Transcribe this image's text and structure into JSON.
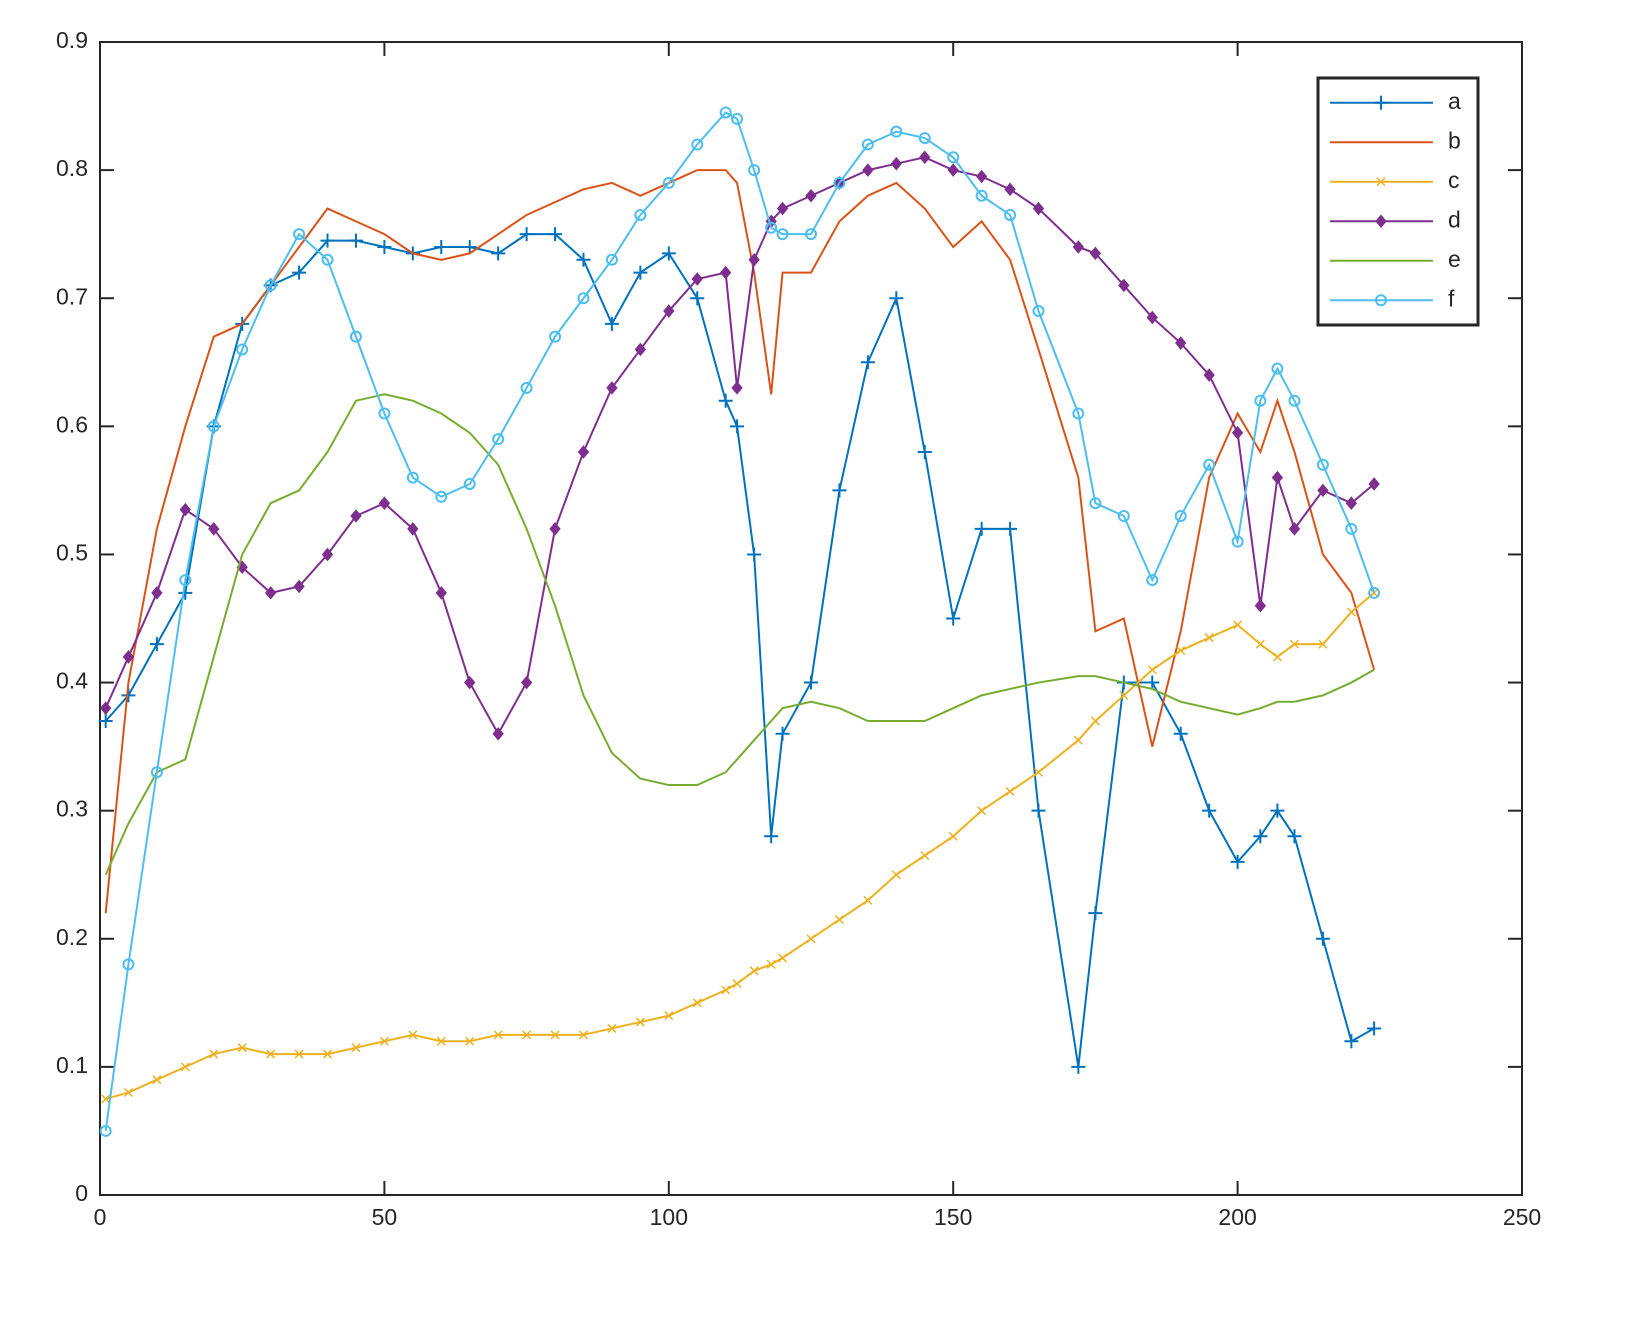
{
  "chart_data": {
    "type": "line",
    "x": [
      1,
      5,
      10,
      15,
      20,
      25,
      30,
      35,
      40,
      45,
      50,
      55,
      60,
      65,
      70,
      75,
      80,
      85,
      90,
      95,
      100,
      105,
      110,
      112,
      115,
      118,
      120,
      125,
      130,
      135,
      140,
      145,
      150,
      155,
      160,
      165,
      172,
      175,
      180,
      185,
      190,
      195,
      200,
      204,
      207,
      210,
      215,
      220,
      224
    ],
    "series": [
      {
        "name": "a",
        "color": "#0072BD",
        "marker": "+",
        "values": [
          0.37,
          0.39,
          0.43,
          0.47,
          0.6,
          0.68,
          0.71,
          0.72,
          0.745,
          0.745,
          0.74,
          0.735,
          0.74,
          0.74,
          0.735,
          0.75,
          0.75,
          0.73,
          0.68,
          0.72,
          0.735,
          0.7,
          0.62,
          0.6,
          0.5,
          0.28,
          0.36,
          0.4,
          0.55,
          0.65,
          0.7,
          0.58,
          0.45,
          0.52,
          0.52,
          0.3,
          0.1,
          0.22,
          0.4,
          0.4,
          0.36,
          0.3,
          0.26,
          0.28,
          0.3,
          0.28,
          0.2,
          0.12,
          0.13
        ]
      },
      {
        "name": "b",
        "color": "#D95319",
        "marker": "none",
        "values": [
          0.22,
          0.4,
          0.52,
          0.6,
          0.67,
          0.68,
          0.71,
          0.74,
          0.77,
          0.76,
          0.75,
          0.735,
          0.73,
          0.735,
          0.75,
          0.765,
          0.775,
          0.785,
          0.79,
          0.78,
          0.79,
          0.8,
          0.8,
          0.79,
          0.72,
          0.625,
          0.72,
          0.72,
          0.76,
          0.78,
          0.79,
          0.77,
          0.74,
          0.76,
          0.73,
          0.66,
          0.56,
          0.44,
          0.45,
          0.35,
          0.44,
          0.56,
          0.61,
          0.58,
          0.62,
          0.58,
          0.5,
          0.47,
          0.41
        ]
      },
      {
        "name": "c",
        "color": "#EDB120",
        "marker": "x",
        "values": [
          0.075,
          0.08,
          0.09,
          0.1,
          0.11,
          0.115,
          0.11,
          0.11,
          0.11,
          0.115,
          0.12,
          0.125,
          0.12,
          0.12,
          0.125,
          0.125,
          0.125,
          0.125,
          0.13,
          0.135,
          0.14,
          0.15,
          0.16,
          0.165,
          0.175,
          0.18,
          0.185,
          0.2,
          0.215,
          0.23,
          0.25,
          0.265,
          0.28,
          0.3,
          0.315,
          0.33,
          0.355,
          0.37,
          0.39,
          0.41,
          0.425,
          0.435,
          0.445,
          0.43,
          0.42,
          0.43,
          0.43,
          0.455,
          0.47
        ]
      },
      {
        "name": "d",
        "color": "#7E2F8E",
        "marker": "diamond",
        "values": [
          0.38,
          0.42,
          0.47,
          0.535,
          0.52,
          0.49,
          0.47,
          0.475,
          0.5,
          0.53,
          0.54,
          0.52,
          0.47,
          0.4,
          0.36,
          0.4,
          0.52,
          0.58,
          0.63,
          0.66,
          0.69,
          0.715,
          0.72,
          0.63,
          0.73,
          0.76,
          0.77,
          0.78,
          0.79,
          0.8,
          0.805,
          0.81,
          0.8,
          0.795,
          0.785,
          0.77,
          0.74,
          0.735,
          0.71,
          0.685,
          0.665,
          0.64,
          0.595,
          0.46,
          0.56,
          0.52,
          0.55,
          0.54,
          0.555
        ]
      },
      {
        "name": "e",
        "color": "#77AC30",
        "marker": "none",
        "values": [
          0.25,
          0.29,
          0.33,
          0.34,
          0.42,
          0.5,
          0.54,
          0.55,
          0.58,
          0.62,
          0.625,
          0.62,
          0.61,
          0.595,
          0.57,
          0.52,
          0.46,
          0.39,
          0.345,
          0.325,
          0.32,
          0.32,
          0.33,
          0.34,
          0.355,
          0.37,
          0.38,
          0.385,
          0.38,
          0.37,
          0.37,
          0.37,
          0.38,
          0.39,
          0.395,
          0.4,
          0.405,
          0.405,
          0.4,
          0.395,
          0.385,
          0.38,
          0.375,
          0.38,
          0.385,
          0.385,
          0.39,
          0.4,
          0.41
        ]
      },
      {
        "name": "f",
        "color": "#4DBEEE",
        "marker": "o",
        "values": [
          0.05,
          0.18,
          0.33,
          0.48,
          0.6,
          0.66,
          0.71,
          0.75,
          0.73,
          0.67,
          0.61,
          0.56,
          0.545,
          0.555,
          0.59,
          0.63,
          0.67,
          0.7,
          0.73,
          0.765,
          0.79,
          0.82,
          0.845,
          0.84,
          0.8,
          0.755,
          0.75,
          0.75,
          0.79,
          0.82,
          0.83,
          0.825,
          0.81,
          0.78,
          0.765,
          0.69,
          0.61,
          0.54,
          0.53,
          0.48,
          0.53,
          0.57,
          0.51,
          0.62,
          0.645,
          0.62,
          0.57,
          0.52,
          0.47
        ]
      }
    ],
    "xlim": [
      0,
      250
    ],
    "xticks": [
      0,
      50,
      100,
      150,
      200,
      250
    ],
    "ylim": [
      0,
      0.9
    ],
    "yticks": [
      0,
      0.1,
      0.2,
      0.3,
      0.4,
      0.5,
      0.6,
      0.7,
      0.8,
      0.9
    ],
    "grid": false,
    "legend": "upper right"
  }
}
